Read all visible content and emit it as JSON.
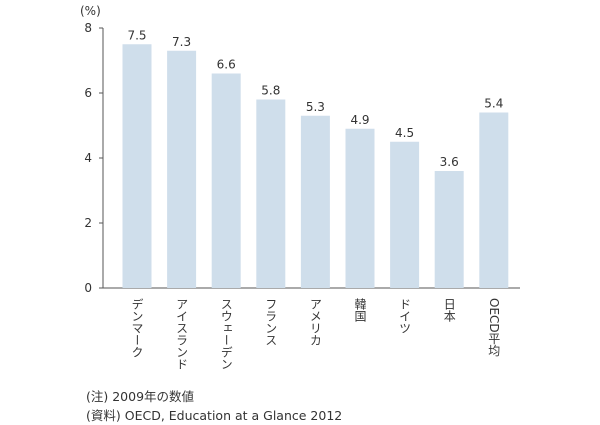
{
  "chart_data": {
    "type": "bar",
    "unit_label": "(%)",
    "categories": [
      "デンマーク",
      "アイスランド",
      "スウェーデン",
      "フランス",
      "アメリカ",
      "韓国",
      "ドイツ",
      "日本",
      "OECD平均"
    ],
    "values": [
      7.5,
      7.3,
      6.6,
      5.8,
      5.3,
      4.9,
      4.5,
      3.6,
      5.4
    ],
    "value_labels": [
      "7.5",
      "7.3",
      "6.6",
      "5.8",
      "5.3",
      "4.9",
      "4.5",
      "3.6",
      "5.4"
    ],
    "y_ticks": [
      "0",
      "2",
      "4",
      "6",
      "8"
    ],
    "ylim": [
      0,
      8
    ],
    "grid": false,
    "bar_color": "#cfdeeb",
    "title": "",
    "xlabel": "",
    "ylabel": ""
  },
  "notes": {
    "note": "(注) 2009年の数値",
    "source": "(資料) OECD, Education at a Glance 2012"
  }
}
